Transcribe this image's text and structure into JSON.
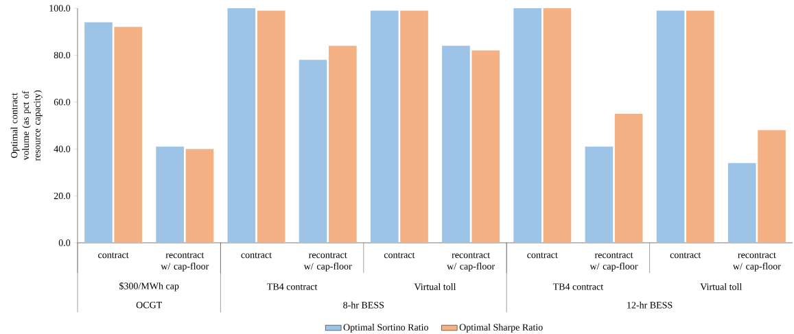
{
  "chart_data": {
    "type": "bar",
    "ylabel": "Optimal contract volume (as pct of resource capacity)",
    "categories": [
      "contract",
      "recontract w/ cap-floor",
      "contract",
      "recontract w/ cap-floor",
      "contract",
      "recontract w/ cap-floor",
      "contract",
      "recontract w/ cap-floor",
      "contract",
      "recontract w/ cap-floor"
    ],
    "series": [
      {
        "name": "Optimal Sortino Ratio",
        "color": "#9dc3e6",
        "values": [
          94,
          41,
          100,
          78,
          99,
          84,
          100,
          41,
          99,
          34
        ]
      },
      {
        "name": "Optimal Sharpe Ratio",
        "color": "#f4b183",
        "values": [
          92,
          40,
          99,
          84,
          99,
          82,
          100,
          55,
          99,
          48
        ]
      }
    ],
    "ylim": [
      0,
      100
    ],
    "yticks": [
      {
        "value": 0,
        "label": "0.0"
      },
      {
        "value": 20,
        "label": "20.0"
      },
      {
        "value": 40,
        "label": "40.0"
      },
      {
        "value": 60,
        "label": "60.0"
      },
      {
        "value": 80,
        "label": "80.0"
      },
      {
        "value": 100,
        "label": "100.0"
      }
    ],
    "annotations": [
      "$300/MWh cap",
      "TB4 contract",
      "Virtual toll",
      "TB4 contract",
      "Virtual toll",
      "OCGT",
      "8-hr BESS",
      "12-hr BESS"
    ],
    "legend": "bottom",
    "grid": false
  }
}
